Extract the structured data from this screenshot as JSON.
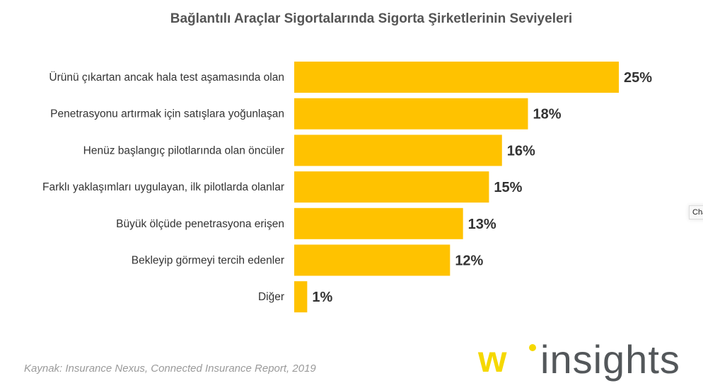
{
  "chart_data": {
    "type": "bar",
    "orientation": "horizontal",
    "title": "Bağlantılı Araçlar Sigortalarında Sigorta Şirketlerinin Seviyeleri",
    "categories": [
      "Ürünü çıkartan ancak hala test aşamasında olan",
      "Penetrasyonu artırmak için satışlara yoğunlaşan",
      "Henüz başlangıç pilotlarında olan öncüler",
      "Farklı yaklaşımları uygulayan, ilk pilotlarda olanlar",
      "Büyük ölçüde penetrasyona erişen",
      "Bekleyip görmeyi tercih edenler",
      "Diğer"
    ],
    "values": [
      25,
      18,
      16,
      15,
      13,
      12,
      1
    ],
    "data_labels": [
      "25%",
      "18%",
      "16%",
      "15%",
      "13%",
      "12%",
      "1%"
    ],
    "unit": "%",
    "grid": false,
    "bar_color": "#ffc200"
  },
  "source": "Kaynak: Insurance Nexus, Connected Insurance Report, 2019",
  "logo": {
    "text": "insights",
    "mark": "w"
  },
  "side_tab": "Cha"
}
